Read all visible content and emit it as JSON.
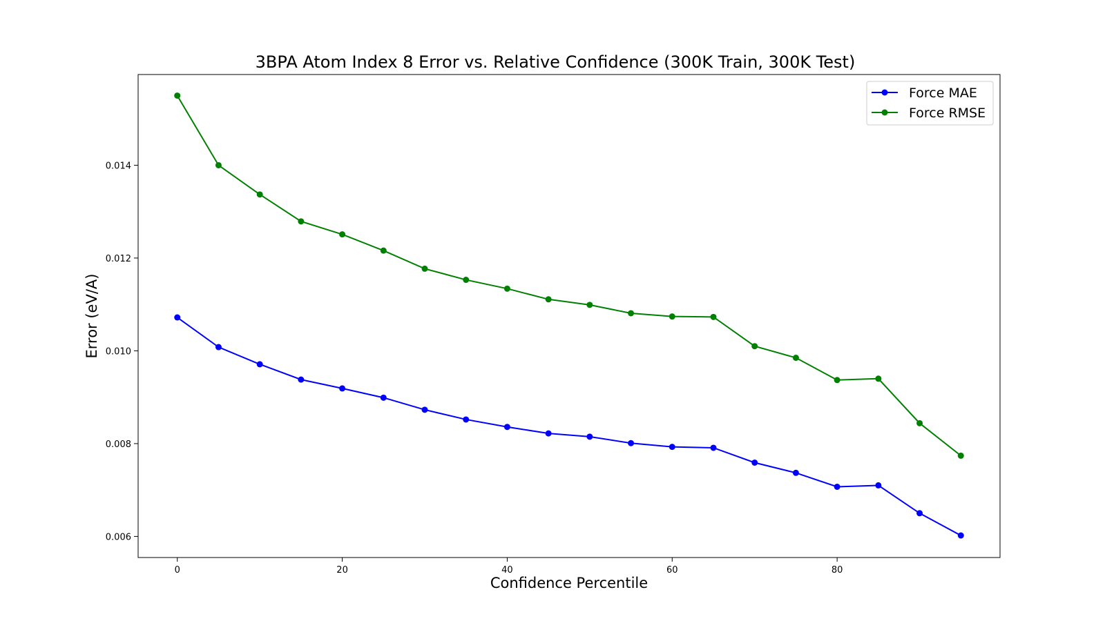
{
  "chart_data": {
    "type": "line",
    "title": "3BPA Atom Index 8 Error vs. Relative Confidence (300K Train, 300K Test)",
    "xlabel": "Confidence Percentile",
    "ylabel": "Error (eV/A)",
    "x": [
      0,
      5,
      10,
      15,
      20,
      25,
      30,
      35,
      40,
      45,
      50,
      55,
      60,
      65,
      70,
      75,
      80,
      85,
      90,
      95
    ],
    "xlim": [
      -4.75,
      99.75
    ],
    "ylim": [
      0.005545,
      0.015955
    ],
    "xticks": [
      0,
      20,
      40,
      60,
      80
    ],
    "xtick_labels": [
      "0",
      "20",
      "40",
      "60",
      "80"
    ],
    "yticks": [
      0.006,
      0.008,
      0.01,
      0.012,
      0.014
    ],
    "ytick_labels": [
      "0.006",
      "0.008",
      "0.010",
      "0.012",
      "0.014"
    ],
    "grid": false,
    "legend_position": "top-right",
    "series": [
      {
        "name": "Force MAE",
        "color": "#0000ff",
        "marker": "circle",
        "values": [
          0.01072,
          0.01008,
          0.00971,
          0.00938,
          0.00919,
          0.00899,
          0.00873,
          0.00852,
          0.00836,
          0.00822,
          0.00815,
          0.00801,
          0.00793,
          0.00791,
          0.00759,
          0.00737,
          0.00707,
          0.0071,
          0.0065,
          0.00602
        ]
      },
      {
        "name": "Force RMSE",
        "color": "#008000",
        "marker": "circle",
        "values": [
          0.0155,
          0.014,
          0.01337,
          0.01279,
          0.01251,
          0.01216,
          0.01177,
          0.01153,
          0.01134,
          0.01111,
          0.01099,
          0.01081,
          0.01074,
          0.01073,
          0.0101,
          0.00985,
          0.00937,
          0.0094,
          0.00844,
          0.00774
        ]
      }
    ]
  }
}
